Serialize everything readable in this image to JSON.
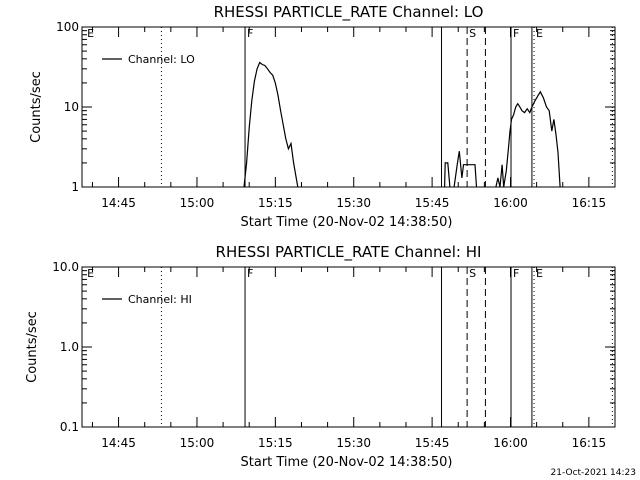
{
  "chart_data": [
    {
      "type": "line",
      "title": "RHESSI PARTICLE_RATE Channel: LO",
      "xlabel": "Start Time (20-Nov-02 14:38:50)",
      "ylabel": "Counts/sec",
      "yscale": "log",
      "ylim": [
        1,
        100
      ],
      "xlim_minutes_from_1438": [
        0,
        102
      ],
      "x_ticks": [
        {
          "t": 7,
          "label": "14:45"
        },
        {
          "t": 22,
          "label": "15:00"
        },
        {
          "t": 37,
          "label": "15:15"
        },
        {
          "t": 52,
          "label": "15:30"
        },
        {
          "t": 67,
          "label": "15:45"
        },
        {
          "t": 82,
          "label": "16:00"
        },
        {
          "t": 97,
          "label": "16:15"
        }
      ],
      "y_ticks": [
        {
          "v": 1,
          "label": "1"
        },
        {
          "v": 10,
          "label": "10"
        },
        {
          "v": 100,
          "label": "100"
        }
      ],
      "legend": {
        "entries": [
          "Channel: LO"
        ],
        "position": "top-left"
      },
      "event_markers": [
        {
          "t": 0.6,
          "label": "E",
          "style": "none"
        },
        {
          "t": 15.2,
          "label": "",
          "style": "dotted"
        },
        {
          "t": 31.2,
          "label": "F",
          "style": "solid"
        },
        {
          "t": 68.8,
          "label": "",
          "style": "solid"
        },
        {
          "t": 73.7,
          "label": "S",
          "style": "dashed"
        },
        {
          "t": 77.2,
          "label": "",
          "style": "dashed"
        },
        {
          "t": 82.1,
          "label": "F",
          "style": "solid"
        },
        {
          "t": 86.1,
          "label": "",
          "style": "solid"
        },
        {
          "t": 86.5,
          "label": "E",
          "style": "dotted"
        },
        {
          "t": 101.5,
          "label": "",
          "style": "dotted"
        }
      ],
      "series": [
        {
          "name": "Channel: LO",
          "segments": [
            [
              [
                31.0,
                1
              ],
              [
                31.5,
                2
              ],
              [
                32.0,
                5.5
              ],
              [
                32.5,
                12
              ],
              [
                33.0,
                21
              ],
              [
                33.5,
                30
              ],
              [
                34.0,
                36
              ],
              [
                34.5,
                34
              ],
              [
                35.0,
                33
              ],
              [
                35.5,
                30
              ],
              [
                36.0,
                27
              ],
              [
                36.5,
                25
              ],
              [
                37.0,
                20
              ],
              [
                37.5,
                14
              ],
              [
                38.0,
                9
              ],
              [
                38.5,
                6
              ],
              [
                39.0,
                4
              ],
              [
                39.5,
                3
              ],
              [
                40.0,
                3.5
              ],
              [
                40.5,
                2
              ],
              [
                41.0,
                1.3
              ],
              [
                41.3,
                1
              ]
            ],
            [
              [
                69.4,
                1
              ],
              [
                69.5,
                2
              ],
              [
                70.0,
                2
              ],
              [
                70.4,
                1
              ]
            ],
            [
              [
                71.2,
                1
              ],
              [
                71.8,
                1.9
              ],
              [
                72.2,
                2.8
              ],
              [
                72.7,
                1.3
              ],
              [
                73.0,
                1.9
              ],
              [
                74.0,
                1.9
              ],
              [
                75.2,
                1.9
              ],
              [
                75.5,
                1
              ]
            ],
            [
              [
                79.2,
                1
              ],
              [
                79.6,
                1.3
              ],
              [
                80.0,
                1
              ],
              [
                80.4,
                1.9
              ],
              [
                80.7,
                1
              ],
              [
                81.2,
                1.6
              ],
              [
                81.6,
                3
              ],
              [
                81.9,
                5
              ],
              [
                82.2,
                7
              ],
              [
                82.6,
                8
              ],
              [
                83.0,
                10
              ],
              [
                83.4,
                11
              ],
              [
                83.8,
                10
              ],
              [
                84.2,
                9
              ],
              [
                84.7,
                8.5
              ],
              [
                85.2,
                9.5
              ],
              [
                85.7,
                8.5
              ],
              [
                86.1,
                10
              ],
              [
                86.7,
                12
              ],
              [
                87.3,
                14
              ],
              [
                87.7,
                15.5
              ],
              [
                88.3,
                13
              ],
              [
                88.9,
                10
              ],
              [
                89.4,
                9
              ],
              [
                89.9,
                5
              ],
              [
                90.3,
                7
              ],
              [
                90.7,
                4.5
              ],
              [
                91.1,
                2.7
              ],
              [
                91.5,
                1
              ]
            ]
          ]
        }
      ]
    },
    {
      "type": "line",
      "title": "RHESSI PARTICLE_RATE Channel: HI",
      "xlabel": "Start Time (20-Nov-02 14:38:50)",
      "ylabel": "Counts/sec",
      "yscale": "log",
      "ylim": [
        0.1,
        10
      ],
      "xlim_minutes_from_1438": [
        0,
        102
      ],
      "x_ticks": [
        {
          "t": 7,
          "label": "14:45"
        },
        {
          "t": 22,
          "label": "15:00"
        },
        {
          "t": 37,
          "label": "15:15"
        },
        {
          "t": 52,
          "label": "15:30"
        },
        {
          "t": 67,
          "label": "15:45"
        },
        {
          "t": 82,
          "label": "16:00"
        },
        {
          "t": 97,
          "label": "16:15"
        }
      ],
      "y_ticks": [
        {
          "v": 0.1,
          "label": "0.1"
        },
        {
          "v": 1,
          "label": "1.0"
        },
        {
          "v": 10,
          "label": "10.0"
        }
      ],
      "legend": {
        "entries": [
          "Channel: HI"
        ],
        "position": "top-left"
      },
      "event_markers": [
        {
          "t": 0.6,
          "label": "E",
          "style": "none"
        },
        {
          "t": 15.2,
          "label": "",
          "style": "dotted"
        },
        {
          "t": 31.2,
          "label": "F",
          "style": "solid"
        },
        {
          "t": 68.8,
          "label": "",
          "style": "solid"
        },
        {
          "t": 73.7,
          "label": "S",
          "style": "dashed"
        },
        {
          "t": 77.2,
          "label": "",
          "style": "dashed"
        },
        {
          "t": 82.1,
          "label": "F",
          "style": "solid"
        },
        {
          "t": 86.1,
          "label": "",
          "style": "solid"
        },
        {
          "t": 86.5,
          "label": "E",
          "style": "dotted"
        },
        {
          "t": 101.5,
          "label": "",
          "style": "dotted"
        }
      ],
      "series": [
        {
          "name": "Channel: HI",
          "segments": []
        }
      ]
    }
  ],
  "footer": {
    "timestamp": "21-Oct-2021 14:23"
  }
}
